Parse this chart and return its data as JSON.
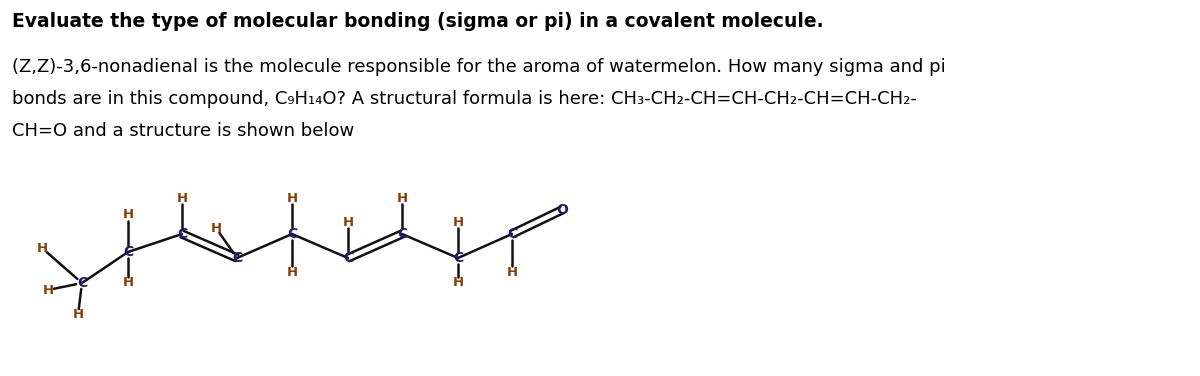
{
  "title_line": "Evaluate the type of molecular bonding (sigma or pi) in a covalent molecule.",
  "body_lines": [
    "(Z,Z)-3,6-nonadienal is the molecule responsible for the aroma of watermelon. How many sigma and pi",
    "bonds are in this compound, C₉H₁₄O? A structural formula is here: CH₃-CH₂-CH=CH-CH₂-CH=CH-CH₂-",
    "CH=O and a structure is shown below"
  ],
  "font_size_title": 13.5,
  "font_size_body": 13.0,
  "bg_color": "#ffffff",
  "text_color": "#000000",
  "bond_color": "#111111",
  "label_color_C": "#1a1a6e",
  "label_color_H": "#8B3A00",
  "label_color_O": "#1a1a6e"
}
